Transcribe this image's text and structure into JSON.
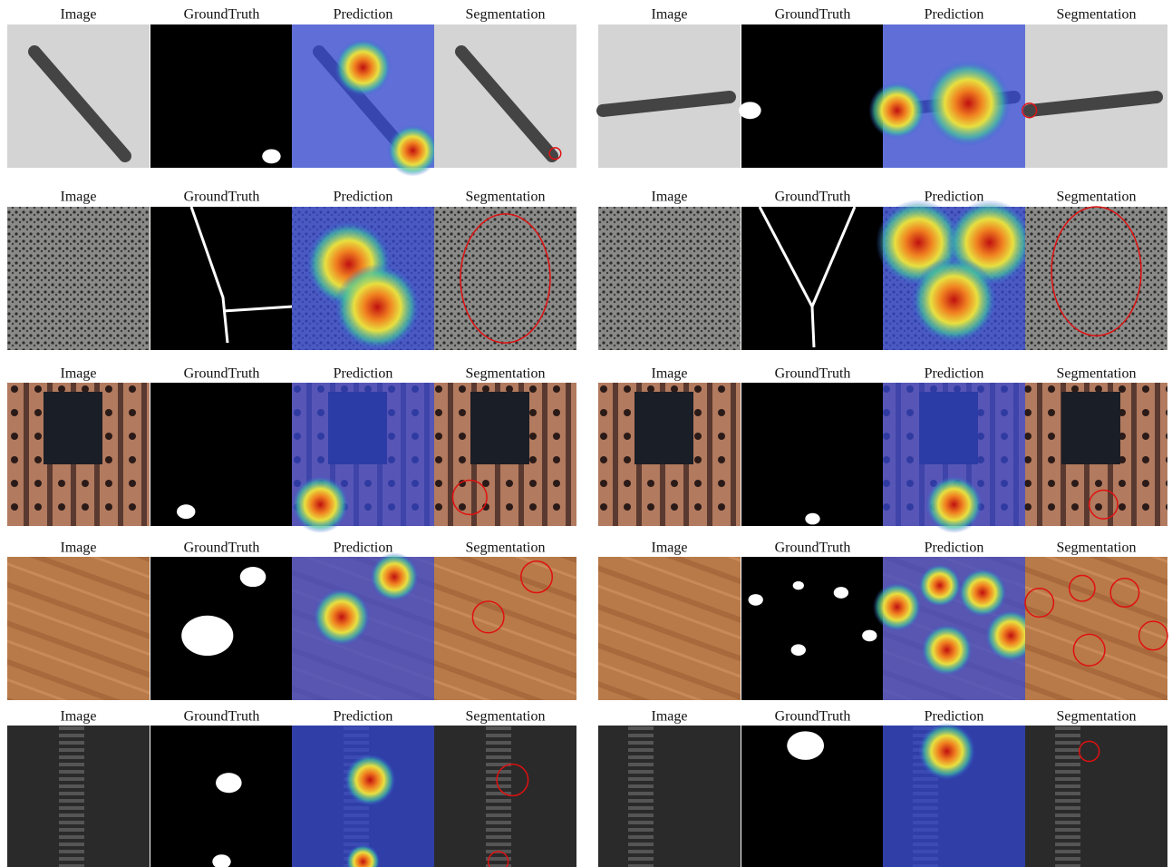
{
  "panels": [
    {
      "headers": [
        "Image",
        "GroundTruth",
        "Prediction",
        "Segmentation"
      ]
    },
    {
      "headers": [
        "Image",
        "GroundTruth",
        "Prediction",
        "Segmentation"
      ]
    },
    {
      "headers": [
        "Image",
        "GroundTruth",
        "Prediction",
        "Segmentation"
      ]
    },
    {
      "headers": [
        "Image",
        "GroundTruth",
        "Prediction",
        "Segmentation"
      ]
    },
    {
      "headers": [
        "Image",
        "GroundTruth",
        "Prediction",
        "Segmentation"
      ]
    },
    {
      "headers": [
        "Image",
        "GroundTruth",
        "Prediction",
        "Segmentation"
      ]
    },
    {
      "headers": [
        "Image",
        "GroundTruth",
        "Prediction",
        "Segmentation"
      ]
    },
    {
      "headers": [
        "Image",
        "GroundTruth",
        "Prediction",
        "Segmentation"
      ]
    },
    {
      "headers": [
        "Image",
        "GroundTruth",
        "Prediction",
        "Segmentation"
      ]
    },
    {
      "headers": [
        "Image",
        "GroundTruth",
        "Prediction",
        "Segmentation"
      ]
    }
  ]
}
